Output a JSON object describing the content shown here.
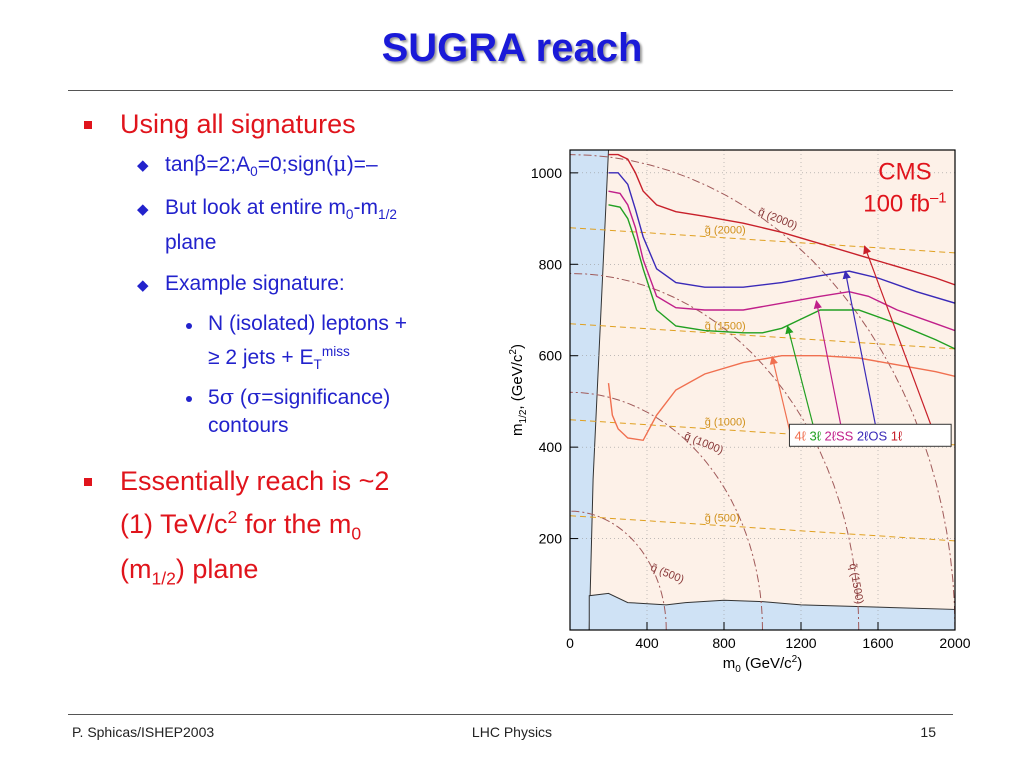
{
  "slide": {
    "title": "SUGRA reach"
  },
  "bullets": {
    "b1": "Using all signatures",
    "b1_1": {
      "a": "tan",
      "beta": "β",
      "b": "=2;A",
      "sub0": "0",
      "c": "=0;sign(",
      "mu": "μ",
      "d": ")=–"
    },
    "b1_2": {
      "a": "But look at entire m",
      "sub0": "0",
      "b": "-m",
      "sub12": "1/2",
      "c": "plane"
    },
    "b1_3": "Example signature:",
    "b1_3_1": {
      "a": "N (isolated) leptons +",
      "b": "≥ 2 jets + E",
      "subT": "T",
      "supmiss": "miss"
    },
    "b1_3_2": {
      "a": "5",
      "sig1": "σ",
      "b": " (",
      "sig2": "σ",
      "c": "=significance)",
      "d": "contours"
    },
    "b2": {
      "a": "Essentially reach is ~2",
      "b": "(1) TeV/c",
      "sup2": "2",
      "c": " for the m",
      "sub0": "0",
      "d": "(m",
      "sub12": "1/2",
      "e": ") plane"
    }
  },
  "footer": {
    "left": "P. Sphicas/ISHEP2003",
    "center": "LHC Physics",
    "right": "15"
  },
  "chart_data": {
    "type": "line",
    "xlabel": "m0 (GeV/c2)",
    "ylabel": "m1/2, (GeV/c2)",
    "xlim": [
      0,
      2000
    ],
    "ylim": [
      0,
      1050
    ],
    "x_ticks": [
      "0",
      "400",
      "800",
      "1200",
      "1600",
      "2000"
    ],
    "y_ticks": [
      "200",
      "400",
      "600",
      "800",
      "1000"
    ],
    "x_tick_values": [
      0,
      400,
      800,
      1200,
      1600,
      2000
    ],
    "y_tick_values": [
      200,
      400,
      600,
      800,
      1000
    ],
    "annotations": {
      "experiment": "CMS",
      "lumi": "100 fb",
      "lumi_sup": "–1"
    },
    "series": [
      {
        "name": "4ℓ",
        "color": "#f07050",
        "x": [
          200,
          220,
          250,
          300,
          380,
          450,
          550,
          700,
          900,
          1100,
          1300,
          1500,
          1700,
          1900,
          2000
        ],
        "y": [
          540,
          470,
          440,
          420,
          415,
          470,
          525,
          560,
          585,
          600,
          600,
          595,
          580,
          565,
          555
        ]
      },
      {
        "name": "3ℓ",
        "color": "#22a022",
        "x": [
          200,
          260,
          300,
          340,
          380,
          450,
          550,
          700,
          900,
          1000,
          1100,
          1200,
          1300,
          1500,
          1700,
          1900,
          2000
        ],
        "y": [
          930,
          925,
          900,
          850,
          790,
          700,
          665,
          655,
          650,
          650,
          660,
          680,
          700,
          700,
          670,
          635,
          615
        ]
      },
      {
        "name": "2ℓSS",
        "color": "#c0208a",
        "x": [
          200,
          260,
          300,
          340,
          380,
          450,
          550,
          700,
          900,
          1100,
          1300,
          1450,
          1550,
          1700,
          1900,
          2000
        ],
        "y": [
          960,
          955,
          930,
          880,
          810,
          730,
          705,
          700,
          700,
          715,
          730,
          740,
          730,
          700,
          670,
          655
        ]
      },
      {
        "name": "2ℓOS",
        "color": "#3a2ab8",
        "x": [
          200,
          250,
          300,
          340,
          380,
          450,
          550,
          700,
          900,
          1100,
          1300,
          1450,
          1600,
          1800,
          2000
        ],
        "y": [
          1000,
          1000,
          975,
          920,
          860,
          790,
          760,
          750,
          750,
          760,
          775,
          785,
          770,
          740,
          715
        ]
      },
      {
        "name": "1ℓ",
        "color": "#c8202a",
        "x": [
          200,
          250,
          300,
          340,
          380,
          450,
          550,
          700,
          900,
          1100,
          1300,
          1500,
          1700,
          1900,
          2000
        ],
        "y": [
          1040,
          1040,
          1030,
          1000,
          960,
          930,
          915,
          905,
          890,
          870,
          845,
          820,
          795,
          770,
          755
        ]
      }
    ],
    "reference_lines": {
      "gluino_mass": [
        {
          "label": "g̃ (2000)",
          "y_left": 880,
          "y_right": 825
        },
        {
          "label": "g̃ (1500)",
          "y_left": 670,
          "y_right": 615
        },
        {
          "label": "g̃ (1000)",
          "y_left": 460,
          "y_right": 405
        },
        {
          "label": "g̃ (500)",
          "y_left": 250,
          "y_right": 195
        }
      ],
      "squark_mass": [
        {
          "label": "q̃ (2000)",
          "radius": 2000
        },
        {
          "label": "q̃ (1500)",
          "radius": 1500
        },
        {
          "label": "q̃ (1000)",
          "radius": 1000
        },
        {
          "label": "q̃ (500)",
          "radius": 500
        }
      ]
    },
    "colors": {
      "excluded_region": "#cfe2f5",
      "plot_background": "#fdf1e8",
      "grid": "#9a9a9a",
      "gluino_lines": "#e0a020",
      "squark_lines": "#a05a5a"
    },
    "legend_position": "right-middle"
  }
}
